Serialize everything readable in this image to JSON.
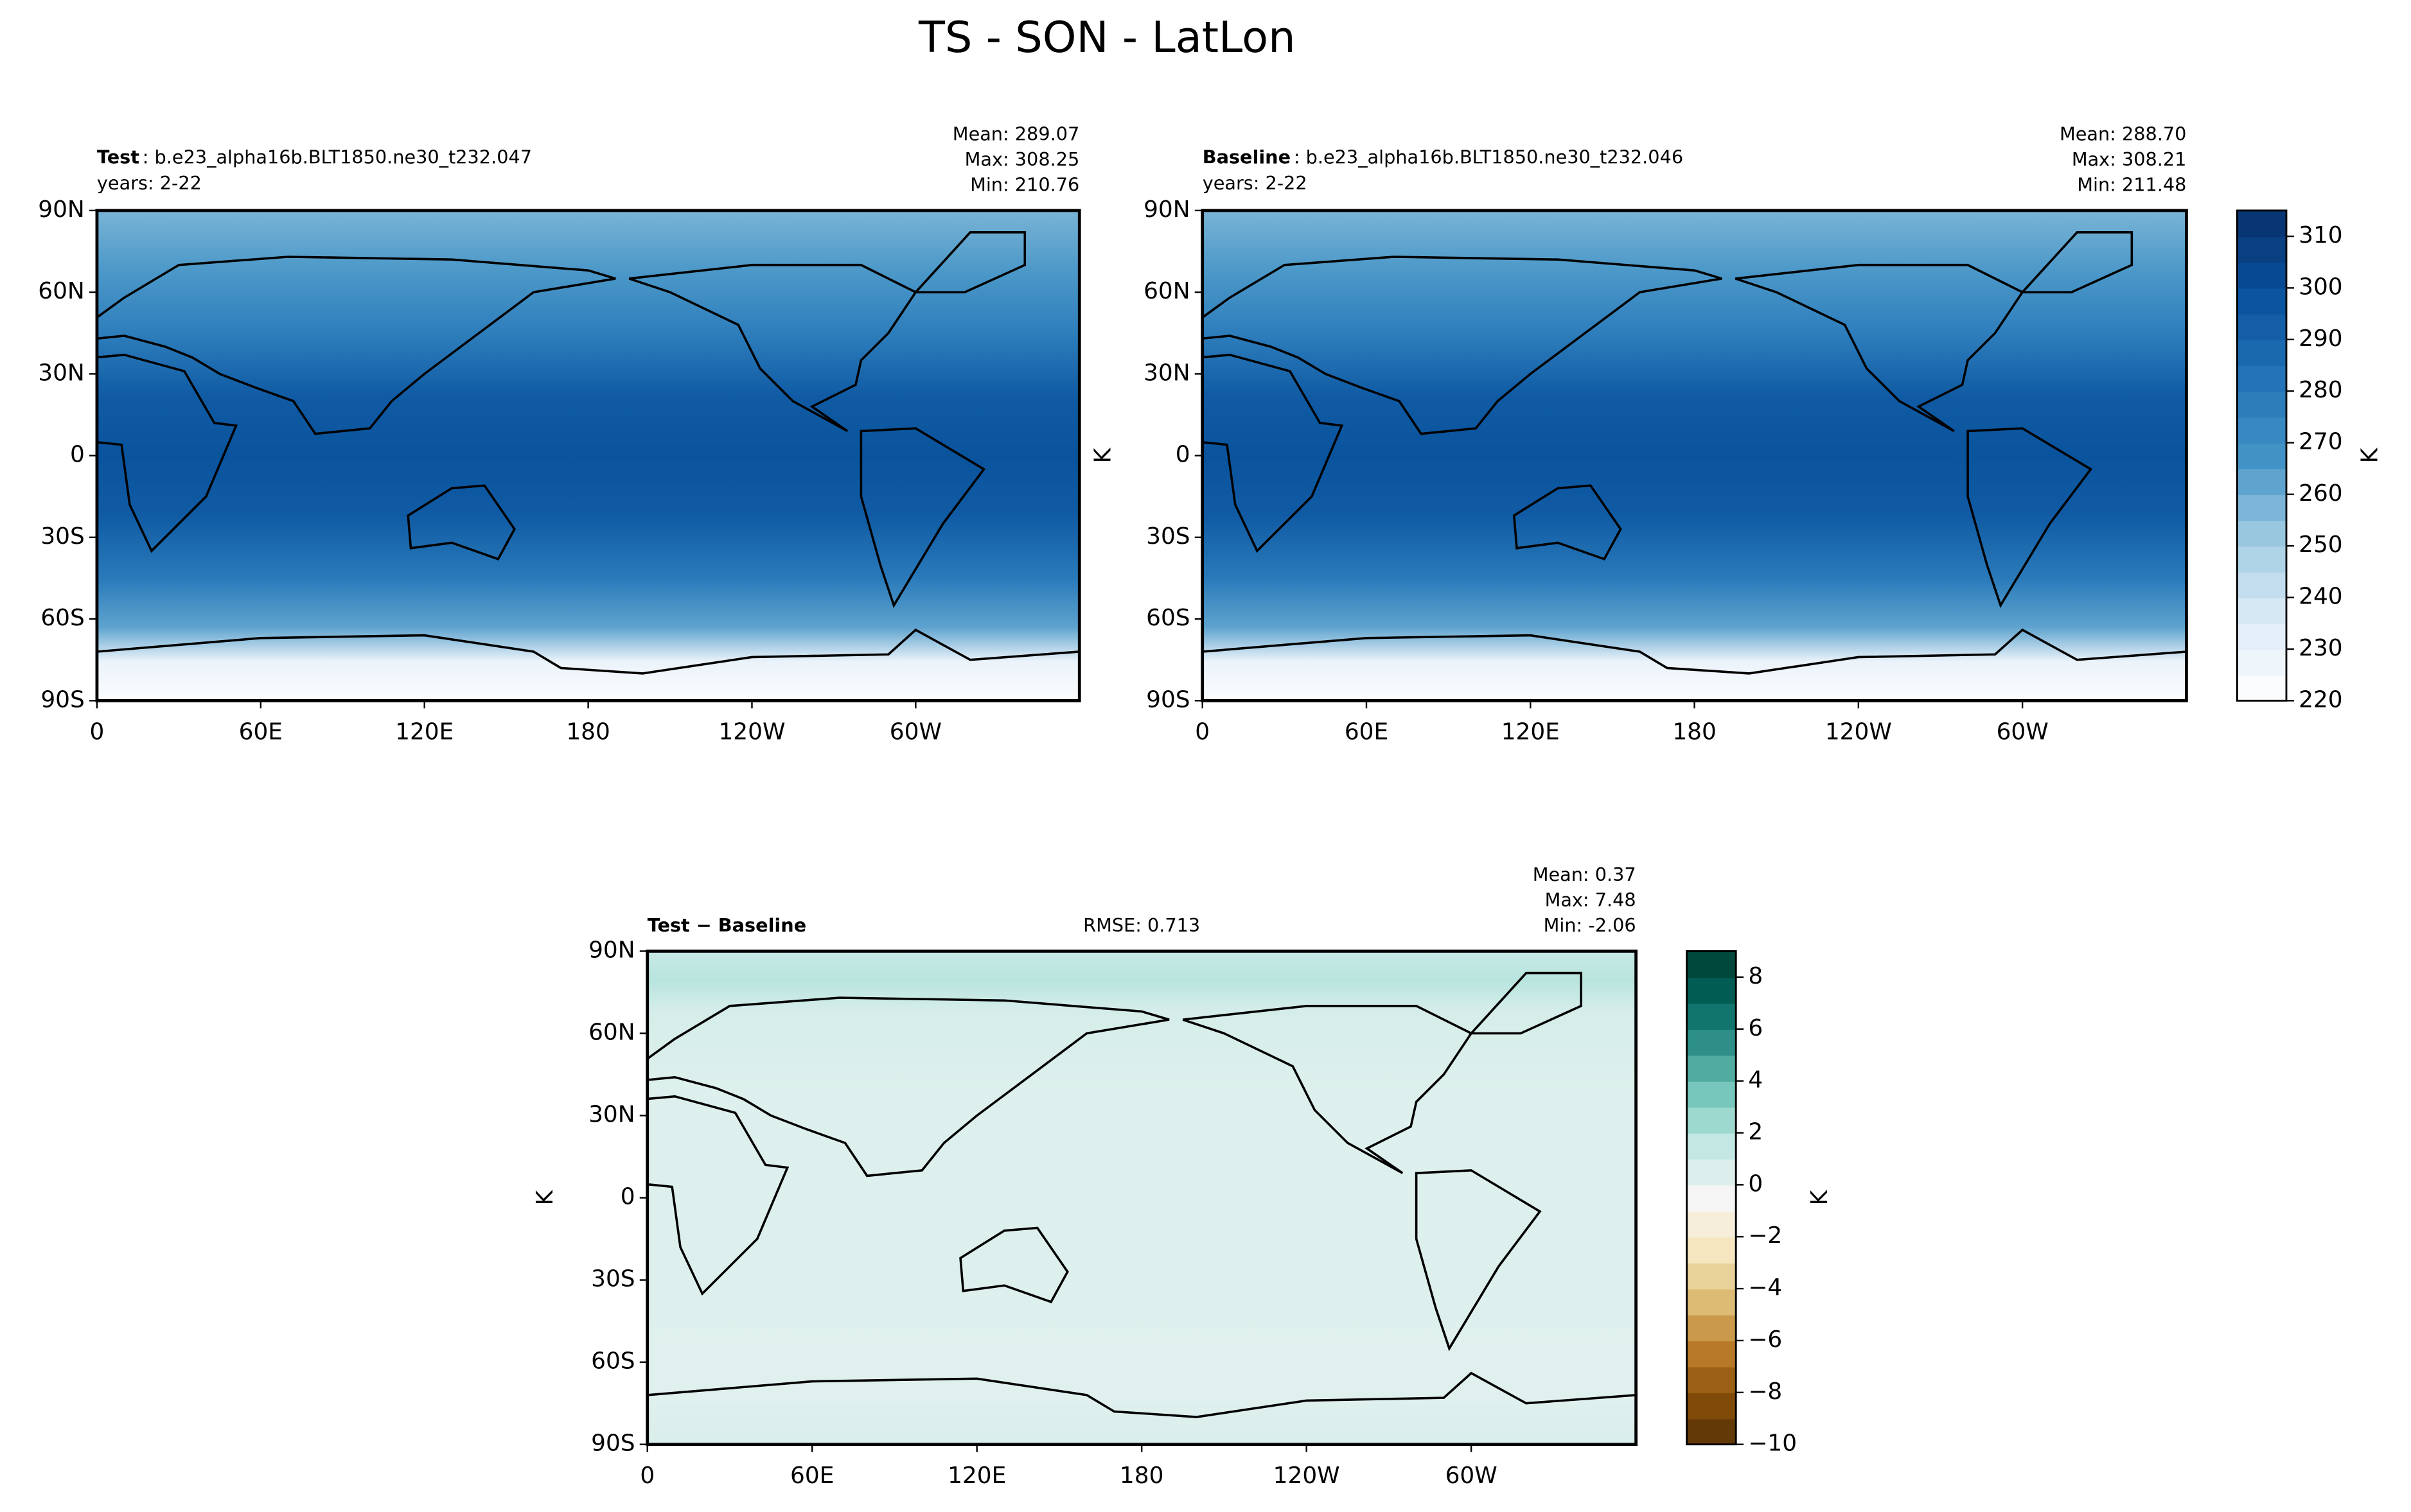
{
  "title": "TS - SON - LatLon",
  "chart_data": [
    {
      "type": "contour-map",
      "label": "Test",
      "case": ": b.e23_alpha16b.BLT1850.ne30_t232.047",
      "years": "years: 2-22",
      "stats": [
        "Mean: 289.07",
        "Max: 308.25",
        "Min: 210.76"
      ],
      "xlim": [
        0,
        360
      ],
      "xticks": [
        0,
        {
          "value": 60,
          "label": "60E"
        },
        {
          "value": 120,
          "label": "120E"
        },
        180,
        {
          "value": 240,
          "label": "120W"
        },
        {
          "value": 300,
          "label": "60W"
        }
      ],
      "ylim": [
        -90,
        90
      ],
      "yticks": [
        {
          "value": -90,
          "label": "90S"
        },
        {
          "value": -60,
          "label": "60S"
        },
        {
          "value": -30,
          "label": "30S"
        },
        0,
        {
          "value": 30,
          "label": "30N"
        },
        {
          "value": 60,
          "label": "60N"
        },
        {
          "value": 90,
          "label": "90N"
        }
      ],
      "colormap": [
        "#ffffff",
        "#deebf7",
        "#9ecae1",
        "#4292c6",
        "#2171b5",
        "#08519c",
        "#08306b"
      ]
    },
    {
      "type": "contour-map",
      "label": "Baseline",
      "case": ": b.e23_alpha16b.BLT1850.ne30_t232.046",
      "years": "years: 2-22",
      "stats": [
        "Mean: 288.70",
        "Max: 308.21",
        "Min: 211.48"
      ],
      "ylabel": "K",
      "xlim": [
        0,
        360
      ],
      "xticks": [
        0,
        {
          "value": 60,
          "label": "60E"
        },
        {
          "value": 120,
          "label": "120E"
        },
        180,
        {
          "value": 240,
          "label": "120W"
        },
        {
          "value": 300,
          "label": "60W"
        }
      ],
      "ylim": [
        -90,
        90
      ],
      "yticks": [
        {
          "value": -90,
          "label": "90S"
        },
        {
          "value": -60,
          "label": "60S"
        },
        {
          "value": -30,
          "label": "30S"
        },
        0,
        {
          "value": 30,
          "label": "30N"
        },
        {
          "value": 60,
          "label": "60N"
        },
        {
          "value": 90,
          "label": "90N"
        }
      ],
      "colormap": [
        "#ffffff",
        "#deebf7",
        "#9ecae1",
        "#4292c6",
        "#2171b5",
        "#08519c",
        "#08306b"
      ],
      "colorbar": {
        "label": "K",
        "lim": [
          220,
          315
        ],
        "ticks": [
          220,
          230,
          240,
          250,
          260,
          270,
          280,
          290,
          300,
          310
        ]
      }
    },
    {
      "type": "contour-map",
      "label": "Test − Baseline",
      "rmse": "RMSE: 0.713",
      "stats": [
        "Mean:  0.37",
        "Max:  7.48",
        "Min: -2.06"
      ],
      "ylabel": "K",
      "xlim": [
        0,
        360
      ],
      "xticks": [
        0,
        {
          "value": 60,
          "label": "60E"
        },
        {
          "value": 120,
          "label": "120E"
        },
        180,
        {
          "value": 240,
          "label": "120W"
        },
        {
          "value": 300,
          "label": "60W"
        }
      ],
      "ylim": [
        -90,
        90
      ],
      "yticks": [
        {
          "value": -90,
          "label": "90S"
        },
        {
          "value": -60,
          "label": "60S"
        },
        {
          "value": -30,
          "label": "30S"
        },
        0,
        {
          "value": 30,
          "label": "30N"
        },
        {
          "value": 60,
          "label": "60N"
        },
        {
          "value": 90,
          "label": "90N"
        }
      ],
      "colormap": [
        "#543005",
        "#8c510a",
        "#bf812d",
        "#dfc27d",
        "#f6e8c3",
        "#f5f5f5",
        "#c7eae5",
        "#80cdc1",
        "#35978f",
        "#01665e",
        "#003c30"
      ],
      "colorbar": {
        "label": "K",
        "lim": [
          -10,
          9
        ],
        "ticks": [
          {
            "value": -10,
            "label": "−10"
          },
          {
            "value": -8,
            "label": "−8"
          },
          {
            "value": -6,
            "label": "−6"
          },
          {
            "value": -4,
            "label": "−4"
          },
          {
            "value": -2,
            "label": "−2"
          },
          0,
          2,
          4,
          6,
          8
        ]
      }
    }
  ]
}
